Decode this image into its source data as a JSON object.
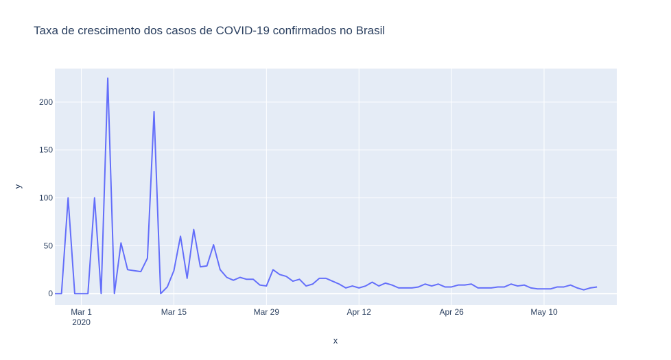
{
  "chart_data": {
    "type": "line",
    "title": "Taxa de crescimento dos casos de COVID-19 confirmados no Brasil",
    "xlabel": "x",
    "ylabel": "y",
    "x_start": "2020-02-26",
    "x_range": [
      "2020-02-26",
      "2020-05-21"
    ],
    "ylim": [
      -12,
      235
    ],
    "grid": true,
    "legend": "none",
    "line_color": "#636efa",
    "plot_bg": "#e5ecf6",
    "x_ticks": [
      {
        "date": "2020-03-01",
        "label": "Mar 1",
        "sublabel": "2020"
      },
      {
        "date": "2020-03-15",
        "label": "Mar 15",
        "sublabel": ""
      },
      {
        "date": "2020-03-29",
        "label": "Mar 29",
        "sublabel": ""
      },
      {
        "date": "2020-04-12",
        "label": "Apr 12",
        "sublabel": ""
      },
      {
        "date": "2020-04-26",
        "label": "Apr 26",
        "sublabel": ""
      },
      {
        "date": "2020-05-10",
        "label": "May 10",
        "sublabel": ""
      }
    ],
    "y_ticks": [
      0,
      50,
      100,
      150,
      200
    ],
    "y_tick_labels": [
      "0",
      "50",
      "100",
      "150",
      "200"
    ],
    "series": [
      {
        "values": [
          0,
          0,
          100,
          0,
          0,
          0,
          100,
          0,
          225,
          0,
          53,
          25,
          24,
          23,
          37,
          190,
          0,
          7,
          24,
          60,
          16,
          67,
          28,
          29,
          51,
          25,
          17,
          14,
          17,
          15,
          15,
          9,
          8,
          25,
          20,
          18,
          13,
          15,
          8,
          10,
          16,
          16,
          13,
          10,
          6,
          8,
          6,
          8,
          12,
          8,
          11,
          9,
          6,
          6,
          6,
          7,
          10,
          8,
          10,
          7,
          7,
          9,
          9,
          10,
          6,
          6,
          6,
          7,
          7,
          10,
          8,
          9,
          6,
          5,
          5,
          5,
          7,
          7,
          9,
          6,
          4,
          6,
          7
        ]
      }
    ]
  }
}
